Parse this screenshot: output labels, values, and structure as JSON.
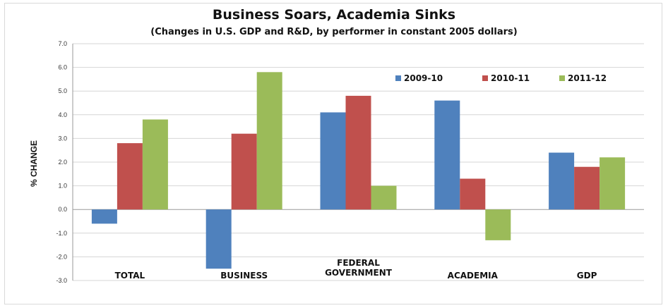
{
  "chart_data": {
    "type": "bar",
    "title": "Business Soars, Academia Sinks",
    "subtitle": "(Changes in U.S. GDP and R&D, by performer in constant 2005 dollars)",
    "ylabel": "% CHANGE",
    "xlabel": "",
    "ylim": [
      -3.0,
      7.0
    ],
    "yticks": [
      "7.0",
      "6.0",
      "5.0",
      "4.0",
      "3.0",
      "2.0",
      "1.0",
      "0.0",
      "-1.0",
      "-2.0",
      "-3.0"
    ],
    "categories": [
      [
        "TOTAL"
      ],
      [
        "BUSINESS"
      ],
      [
        "FEDERAL",
        "GOVERNMENT"
      ],
      [
        "ACADEMIA"
      ],
      [
        "GDP"
      ]
    ],
    "series": [
      {
        "name": "2009-10",
        "color": "#4f81bd",
        "values": [
          -0.6,
          -2.5,
          4.1,
          4.6,
          2.4
        ]
      },
      {
        "name": "2010-11",
        "color": "#c0504d",
        "values": [
          2.8,
          3.2,
          4.8,
          1.3,
          1.8
        ]
      },
      {
        "name": "2011-12",
        "color": "#9bbb59",
        "values": [
          3.8,
          5.8,
          1.0,
          -1.3,
          2.2
        ]
      }
    ],
    "grid": true,
    "legend_position": "top-right"
  }
}
